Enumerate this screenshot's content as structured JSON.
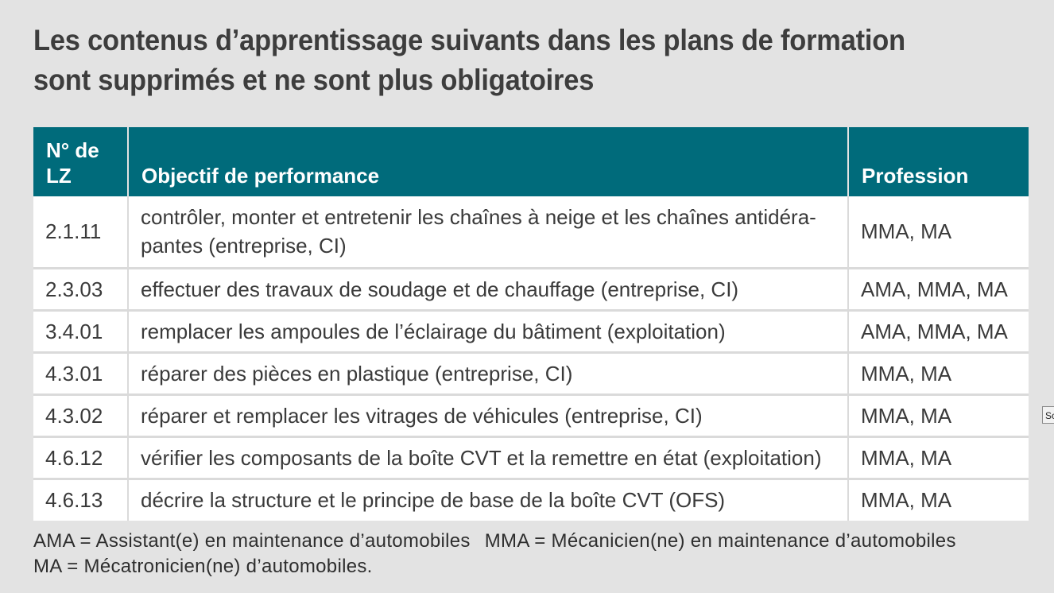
{
  "title": "Les contenus d’apprentissage suivants dans les plans de formation sont supprimés et ne sont plus obligatoires",
  "table": {
    "headers": {
      "lz": "N° de LZ",
      "objective": "Objectif de performance",
      "profession": "Profession"
    },
    "rows": [
      {
        "lz": "2.1.11",
        "objective": "contrôler, monter et entretenir les chaînes à neige et les chaînes antidéra-pantes (entreprise, CI)",
        "profession": "MMA, MA"
      },
      {
        "lz": "2.3.03",
        "objective": "effectuer des travaux de soudage et de chauffage (entreprise, CI)",
        "profession": "AMA, MMA, MA"
      },
      {
        "lz": "3.4.01",
        "objective": "remplacer les ampoules de l’éclairage du bâtiment (exploitation)",
        "profession": "AMA, MMA, MA"
      },
      {
        "lz": "4.3.01",
        "objective": "réparer des pièces en plastique (entreprise, CI)",
        "profession": "MMA, MA"
      },
      {
        "lz": "4.3.02",
        "objective": "réparer et remplacer les vitrages de véhicules (entreprise, CI)",
        "profession": "MMA, MA"
      },
      {
        "lz": "4.6.12",
        "objective": "vérifier les composants de la boîte CVT et la remettre en état (exploitation)",
        "profession": "MMA, MA"
      },
      {
        "lz": "4.6.13",
        "objective": "décrire la structure et le principe de base de la boîte CVT (OFS)",
        "profession": "MMA, MA"
      }
    ]
  },
  "footnote": {
    "ama": "AMA = Assistant(e) en maintenance d’automobiles",
    "mma": "MMA = Mécanicien(ne) en maintenance d’automobiles",
    "ma": "MA = Mécatronicien(ne) d’automobiles."
  },
  "tooltip_fragment": "Sc"
}
